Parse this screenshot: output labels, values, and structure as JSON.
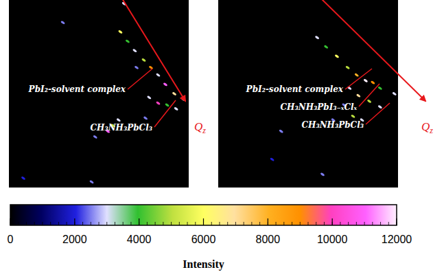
{
  "chart_data": {
    "type": "image",
    "panels": [
      {
        "axis_label": "Qz",
        "labels": [
          "PbI₂-solvent complex",
          "CH₃NH₃PbCl₃"
        ],
        "spots": [
          [
            0.62,
            0.17,
            6000
          ],
          [
            0.66,
            0.22,
            4000
          ],
          [
            0.7,
            0.27,
            3000
          ],
          [
            0.75,
            0.32,
            5000
          ],
          [
            0.79,
            0.36,
            9000
          ],
          [
            0.83,
            0.4,
            3000
          ],
          [
            0.87,
            0.45,
            11000
          ],
          [
            0.92,
            0.5,
            7000
          ],
          [
            0.97,
            0.53,
            12000
          ],
          [
            0.78,
            0.52,
            3000
          ],
          [
            0.83,
            0.55,
            10000
          ],
          [
            0.88,
            0.56,
            4000
          ],
          [
            0.93,
            0.58,
            3000
          ],
          [
            0.58,
            0.67,
            5000
          ],
          [
            0.55,
            0.7,
            11000
          ],
          [
            0.61,
            0.64,
            3000
          ],
          [
            0.48,
            0.73,
            2500
          ],
          [
            0.3,
            0.12,
            2500
          ],
          [
            0.64,
            0.02,
            3000
          ],
          [
            0.46,
            0.97,
            2500
          ],
          [
            0.08,
            0.95,
            2000
          ],
          [
            0.71,
            0.36,
            2500
          ],
          [
            0.76,
            0.63,
            2500
          ]
        ]
      },
      {
        "axis_label": "Qz",
        "labels": [
          "PbI₂-solvent complex",
          "CH₃NH₃PbI₃₋ₓClₓ",
          "CH₃NH₃PbCl₃"
        ],
        "spots": [
          [
            0.55,
            0.2,
            3000
          ],
          [
            0.6,
            0.25,
            4000
          ],
          [
            0.66,
            0.3,
            6000
          ],
          [
            0.72,
            0.36,
            5000
          ],
          [
            0.77,
            0.4,
            8000
          ],
          [
            0.82,
            0.43,
            12000
          ],
          [
            0.86,
            0.44,
            9000
          ],
          [
            0.9,
            0.47,
            4000
          ],
          [
            0.73,
            0.47,
            3000
          ],
          [
            0.78,
            0.51,
            7000
          ],
          [
            0.84,
            0.54,
            5000
          ],
          [
            0.9,
            0.57,
            3000
          ],
          [
            0.7,
            0.56,
            2500
          ],
          [
            0.75,
            0.62,
            5000
          ],
          [
            0.8,
            0.64,
            3000
          ],
          [
            0.64,
            0.64,
            2500
          ],
          [
            0.35,
            0.7,
            2500
          ],
          [
            0.3,
            0.85,
            2000
          ],
          [
            0.98,
            0.5,
            3000
          ],
          [
            0.58,
            0.93,
            2500
          ]
        ]
      }
    ],
    "colorbar": {
      "label": "Intensity",
      "range": [
        0,
        12000
      ],
      "ticks": [
        0,
        2000,
        4000,
        6000,
        8000,
        10000,
        12000
      ]
    }
  }
}
